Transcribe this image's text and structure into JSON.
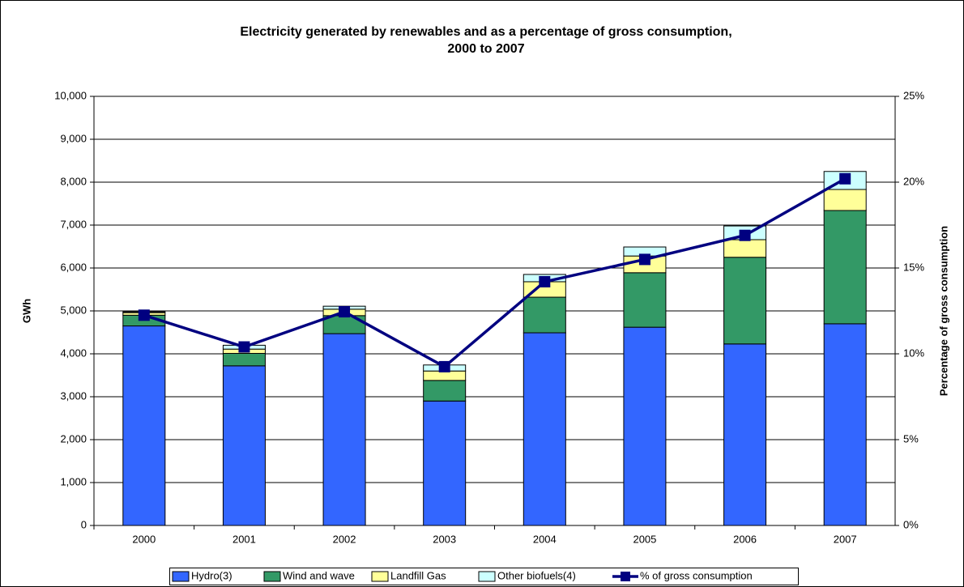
{
  "chart_data": {
    "type": "bar",
    "stacked": true,
    "title": [
      "Electricity generated by renewables and as a percentage of gross consumption,",
      "2000 to 2007"
    ],
    "y_label": "GWh",
    "y2_label": "Percentage of gross consumption",
    "categories": [
      "2000",
      "2001",
      "2002",
      "2003",
      "2004",
      "2005",
      "2006",
      "2007"
    ],
    "series": [
      {
        "name": "Hydro(3)",
        "color": "#3366ff",
        "values": [
          4650,
          3720,
          4470,
          2900,
          4490,
          4620,
          4230,
          4700
        ]
      },
      {
        "name": "Wind and wave",
        "color": "#339966",
        "values": [
          250,
          290,
          420,
          480,
          830,
          1270,
          2020,
          2640
        ]
      },
      {
        "name": "Landfill Gas",
        "color": "#ffff99",
        "values": [
          60,
          100,
          150,
          220,
          360,
          390,
          410,
          490
        ]
      },
      {
        "name": "Other biofuels(4)",
        "color": "#ccffff",
        "values": [
          20,
          90,
          70,
          140,
          170,
          210,
          320,
          420
        ]
      },
      {
        "name": "% of gross consumption",
        "color": "#000080",
        "type": "line",
        "axis": "y2",
        "values": [
          12.25,
          10.4,
          12.45,
          9.25,
          14.2,
          15.5,
          16.9,
          20.2
        ]
      }
    ],
    "ylim": [
      0,
      10000
    ],
    "yticks": [
      0,
      {
        "value": 1000,
        "label": "1,000"
      },
      {
        "value": 2000,
        "label": "2,000"
      },
      {
        "value": 3000,
        "label": "3,000"
      },
      {
        "value": 4000,
        "label": "4,000"
      },
      {
        "value": 5000,
        "label": "5,000"
      },
      {
        "value": 6000,
        "label": "6,000"
      },
      {
        "value": 7000,
        "label": "7,000"
      },
      {
        "value": 8000,
        "label": "8,000"
      },
      {
        "value": 9000,
        "label": "9,000"
      },
      {
        "value": 10000,
        "label": "10,000"
      }
    ],
    "y2lim": [
      0,
      25
    ],
    "y2ticks": [
      {
        "value": 0,
        "label": "0%"
      },
      {
        "value": 5,
        "label": "5%"
      },
      {
        "value": 10,
        "label": "10%"
      },
      {
        "value": 15,
        "label": "15%"
      },
      {
        "value": 20,
        "label": "20%"
      },
      {
        "value": 25,
        "label": "25%"
      }
    ],
    "grid": true,
    "legend": "bottom"
  }
}
